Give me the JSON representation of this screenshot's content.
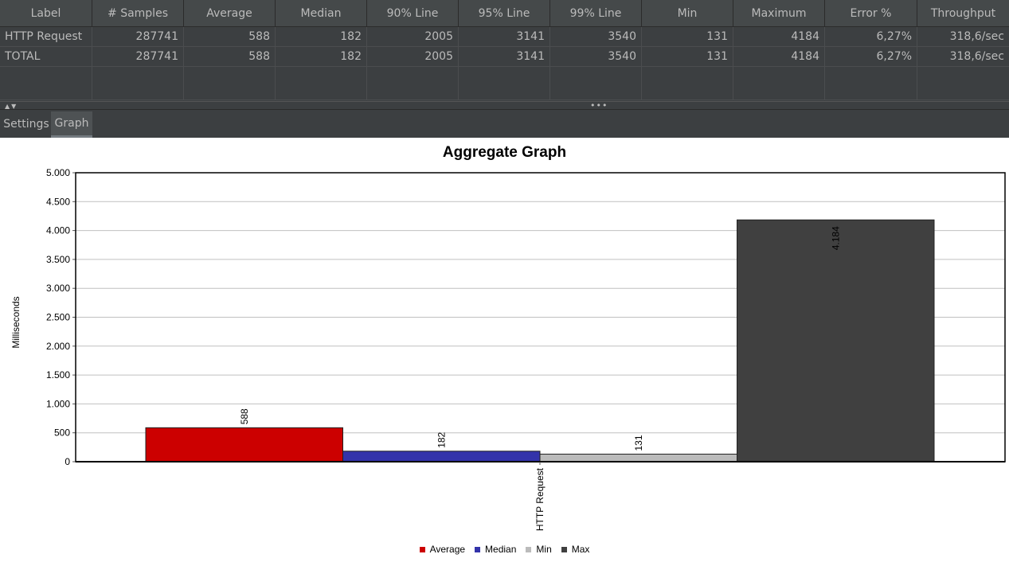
{
  "table": {
    "headers": [
      "Label",
      "# Samples",
      "Average",
      "Median",
      "90% Line",
      "95% Line",
      "99% Line",
      "Min",
      "Maximum",
      "Error %",
      "Throughput"
    ],
    "rows": [
      [
        "HTTP Request",
        "287741",
        "588",
        "182",
        "2005",
        "3141",
        "3540",
        "131",
        "4184",
        "6,27%",
        "318,6/sec"
      ],
      [
        "TOTAL",
        "287741",
        "588",
        "182",
        "2005",
        "3141",
        "3540",
        "131",
        "4184",
        "6,27%",
        "318,6/sec"
      ]
    ]
  },
  "splitter": {
    "arrows": "▲▼",
    "dots": "•••"
  },
  "tabs": {
    "settings": "Settings",
    "graph": "Graph"
  },
  "chart_data": {
    "type": "bar",
    "title": "Aggregate Graph",
    "xlabel": "",
    "ylabel": "Milliseconds",
    "categories": [
      "HTTP Request"
    ],
    "series": [
      {
        "name": "Average",
        "values": [
          588
        ],
        "color": "#cc0000",
        "label": "588"
      },
      {
        "name": "Median",
        "values": [
          182
        ],
        "color": "#3333aa",
        "label": "182"
      },
      {
        "name": "Min",
        "values": [
          131
        ],
        "color": "#bbbbbb",
        "label": "131"
      },
      {
        "name": "Max",
        "values": [
          4184
        ],
        "color": "#404040",
        "label": "4.184"
      }
    ],
    "ylim": [
      0,
      5000
    ],
    "yticks": [
      0,
      500,
      1000,
      1500,
      2000,
      2500,
      3000,
      3500,
      4000,
      4500,
      5000
    ],
    "ytick_labels": [
      "0",
      "500",
      "1.000",
      "1.500",
      "2.000",
      "2.500",
      "3.000",
      "3.500",
      "4.000",
      "4.500",
      "5.000"
    ],
    "grid": true,
    "legend": "bottom"
  }
}
